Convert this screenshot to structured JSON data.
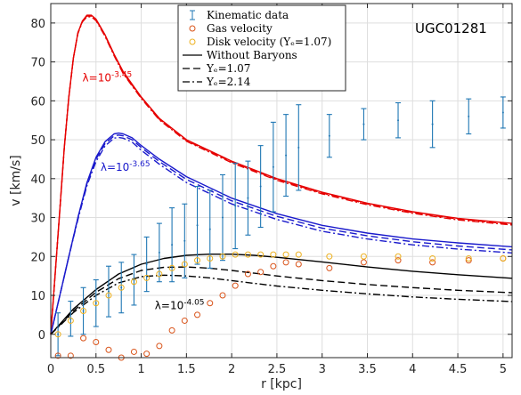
{
  "chart_data": {
    "type": "line",
    "title": "UGC01281",
    "xlabel": "r [kpc]",
    "ylabel": "v [km/s]",
    "xlim": [
      0,
      5.1
    ],
    "ylim": [
      -6,
      85
    ],
    "xticks": [
      0,
      0.5,
      1,
      1.5,
      2,
      2.5,
      3,
      3.5,
      4,
      4.5,
      5
    ],
    "xtick_labels": [
      "0",
      "0.5",
      "1",
      "1.5",
      "2",
      "2.5",
      "3",
      "3.5",
      "4",
      "4.5",
      "5"
    ],
    "yticks": [
      0,
      10,
      20,
      30,
      40,
      50,
      60,
      70,
      80
    ],
    "ytick_labels": [
      "0",
      "10",
      "20",
      "30",
      "40",
      "50",
      "60",
      "70",
      "80"
    ],
    "grid": true,
    "legend_position": "top-center",
    "legend": [
      {
        "label": "Kinematic data",
        "marker": "errorbar",
        "color": "#1f77b4"
      },
      {
        "label": "Gas velocity",
        "marker": "circle",
        "color": "#d95319"
      },
      {
        "label": "Disk velocity (Υₑ=1.07)",
        "marker": "circle",
        "color": "#edb120"
      },
      {
        "label": "Without Baryons",
        "line": "solid",
        "color": "#000000"
      },
      {
        "label": "Υₑ=1.07",
        "line": "dashed",
        "color": "#000000"
      },
      {
        "label": "Υₑ=2.14",
        "line": "dashdot",
        "color": "#000000"
      }
    ],
    "kinematic_data": {
      "color": "#1f77b4",
      "r": [
        0.08,
        0.22,
        0.36,
        0.5,
        0.64,
        0.78,
        0.92,
        1.06,
        1.2,
        1.34,
        1.48,
        1.62,
        1.76,
        1.9,
        2.04,
        2.18,
        2.32,
        2.46,
        2.6,
        2.74,
        3.08,
        3.46,
        3.84,
        4.22,
        4.62,
        5.0
      ],
      "v": [
        0,
        4,
        6,
        8,
        11,
        12,
        14,
        18,
        21,
        23,
        24,
        28,
        27,
        30,
        33,
        35,
        38,
        43,
        46,
        48,
        51,
        54,
        55,
        54,
        56,
        57
      ],
      "err": [
        5.5,
        4.5,
        6,
        6,
        6.5,
        6.5,
        6.5,
        7,
        7.5,
        9.5,
        9.5,
        10,
        10,
        11,
        11,
        9.5,
        10.5,
        11.5,
        10.5,
        11,
        5.5,
        4,
        4.5,
        6,
        4.5,
        4
      ]
    },
    "gas_velocity": {
      "color": "#d95319",
      "r": [
        0.08,
        0.22,
        0.36,
        0.5,
        0.64,
        0.78,
        0.92,
        1.06,
        1.2,
        1.34,
        1.48,
        1.62,
        1.76,
        1.9,
        2.04,
        2.18,
        2.32,
        2.46,
        2.6,
        2.74,
        3.08,
        3.46,
        3.84,
        4.22,
        4.62,
        5.0
      ],
      "v": [
        -5.5,
        -5.5,
        -1,
        -2,
        -4,
        -6,
        -4.5,
        -5,
        -3,
        1,
        3.5,
        5,
        8,
        10,
        12.5,
        15.5,
        16,
        17.5,
        18.5,
        18,
        17,
        18.5,
        19,
        18.5,
        19,
        19.5
      ]
    },
    "disk_velocity": {
      "color": "#edb120",
      "r": [
        0.08,
        0.22,
        0.36,
        0.5,
        0.64,
        0.78,
        0.92,
        1.06,
        1.2,
        1.34,
        1.48,
        1.62,
        1.76,
        1.9,
        2.04,
        2.18,
        2.32,
        2.46,
        2.6,
        2.74,
        3.08,
        3.46,
        3.84,
        4.22,
        4.62,
        5.0
      ],
      "v": [
        0,
        3.5,
        6,
        8,
        10,
        12,
        13.5,
        14.5,
        15.5,
        17,
        18,
        19,
        19.5,
        20,
        20.5,
        20.5,
        20.5,
        20.5,
        20.5,
        20.5,
        20,
        20,
        20,
        19.5,
        19.5,
        19.5
      ]
    },
    "model_curves": [
      {
        "group": "λ=10^-3.45",
        "color": "#e60000",
        "r": [
          0,
          0.05,
          0.1,
          0.15,
          0.2,
          0.25,
          0.3,
          0.35,
          0.4,
          0.45,
          0.5,
          0.6,
          0.7,
          0.8,
          1.0,
          1.2,
          1.5,
          2.0,
          2.5,
          3.0,
          3.5,
          4.0,
          4.5,
          5.1
        ],
        "variants": [
          {
            "style": "solid",
            "v": [
              0,
              16,
              32,
              48,
              61,
              71,
              77.5,
              80.5,
              82,
              82,
              81,
              77,
              72,
              67.5,
              61,
              55.5,
              50,
              44.5,
              40,
              36.5,
              33.7,
              31.5,
              29.8,
              28.5
            ]
          },
          {
            "style": "dashed",
            "v": [
              0,
              16,
              32,
              48,
              61,
              71,
              77.5,
              80.5,
              81.8,
              81.8,
              80.8,
              76.8,
              71.8,
              67.2,
              60.8,
              55.3,
              49.8,
              44.3,
              39.8,
              36.3,
              33.5,
              31.3,
              29.6,
              28.3
            ]
          },
          {
            "style": "dashdot",
            "v": [
              0,
              16,
              32,
              48,
              61,
              71,
              77.3,
              80.3,
              81.6,
              81.6,
              80.6,
              76.6,
              71.6,
              67,
              60.6,
              55.1,
              49.6,
              44.1,
              39.6,
              36.1,
              33.3,
              31.1,
              29.4,
              28.1
            ]
          }
        ]
      },
      {
        "group": "λ=10^-3.65",
        "color": "#1a1acc",
        "r": [
          0,
          0.1,
          0.2,
          0.3,
          0.4,
          0.5,
          0.6,
          0.7,
          0.75,
          0.8,
          0.9,
          1.0,
          1.2,
          1.5,
          2.0,
          2.5,
          3.0,
          3.5,
          4.0,
          4.5,
          5.1
        ],
        "variants": [
          {
            "style": "solid",
            "v": [
              0,
              10,
              20,
              30,
              39,
              45.5,
              49.5,
              51.5,
              51.7,
              51.5,
              50.5,
              48.5,
              45,
              40.5,
              35,
              31,
              28,
              26,
              24.5,
              23.5,
              22.5
            ]
          },
          {
            "style": "dashed",
            "v": [
              0,
              10,
              20,
              30,
              38.7,
              45,
              49,
              51,
              51.2,
              51,
              50,
              48,
              44.4,
              39.8,
              34.3,
              30.3,
              27.3,
              25.3,
              23.8,
              22.7,
              21.7
            ]
          },
          {
            "style": "dashdot",
            "v": [
              0,
              10,
              20,
              29.5,
              38.2,
              44.4,
              48.4,
              50.4,
              50.6,
              50.4,
              49.4,
              47.3,
              43.7,
              39,
              33.5,
              29.5,
              26.5,
              24.5,
              23,
              21.9,
              20.9
            ]
          }
        ]
      },
      {
        "group": "λ=10^-4.05",
        "color": "#000000",
        "r": [
          0,
          0.25,
          0.5,
          0.75,
          1.0,
          1.25,
          1.5,
          1.75,
          2.0,
          2.25,
          2.5,
          3.0,
          3.5,
          4.0,
          4.5,
          5.1
        ],
        "variants": [
          {
            "style": "solid",
            "v": [
              0,
              6.5,
              11.5,
              15.5,
              18,
              19.5,
              20.3,
              20.6,
              20.6,
              20.3,
              19.8,
              18.6,
              17.3,
              16.2,
              15.3,
              14.4
            ]
          },
          {
            "style": "dashed",
            "v": [
              0,
              6,
              10.8,
              14.3,
              16.4,
              17.2,
              17.3,
              17,
              16.4,
              15.7,
              15,
              13.8,
              12.8,
              12,
              11.3,
              10.7
            ]
          },
          {
            "style": "dashdot",
            "v": [
              0,
              5.6,
              10,
              13.2,
              14.8,
              15.2,
              15,
              14.5,
              13.8,
              13.1,
              12.4,
              11.3,
              10.4,
              9.6,
              9,
              8.4
            ]
          }
        ]
      }
    ],
    "annotations": [
      {
        "text_base": "λ=10",
        "text_exp": "-3.45",
        "color": "#e60000",
        "x": 0.35,
        "y": 65
      },
      {
        "text_base": "λ=10",
        "text_exp": "-3.65",
        "color": "#1a1acc",
        "x": 0.55,
        "y": 42
      },
      {
        "text_base": "λ=10",
        "text_exp": "-4.05",
        "color": "#000000",
        "x": 1.15,
        "y": 6.5
      }
    ],
    "galaxy_label": "UGC01281"
  }
}
